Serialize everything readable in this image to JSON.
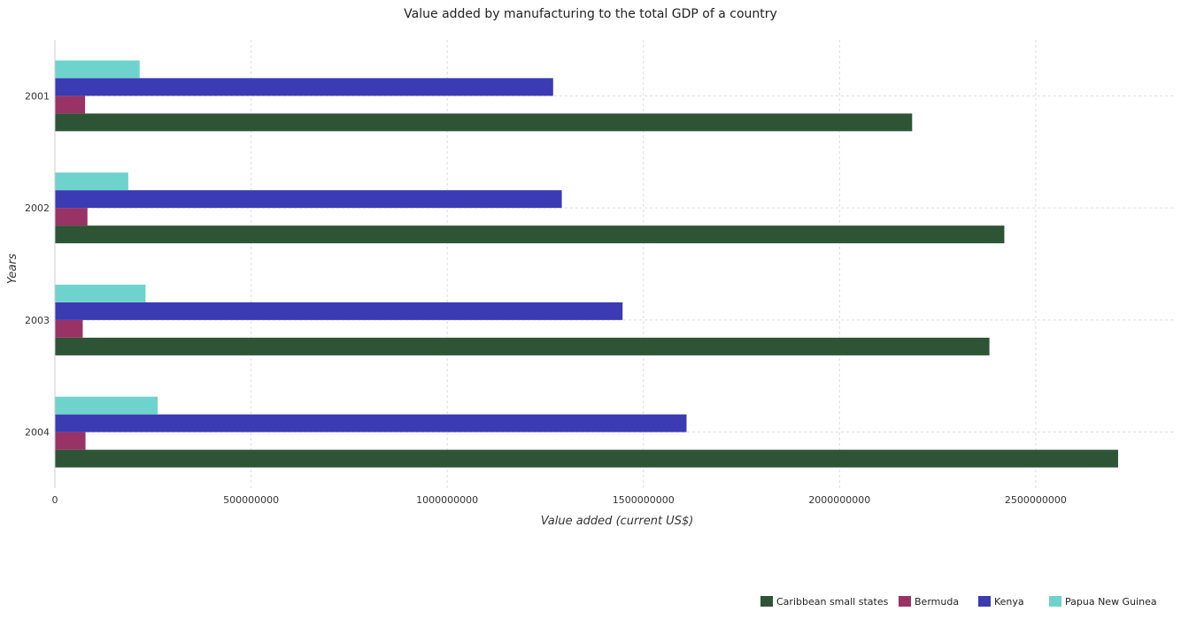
{
  "title": "Value added by manufacturing to the total GDP of a country",
  "chart_data": {
    "type": "bar",
    "orientation": "horizontal",
    "title": "Value added by manufacturing to the total GDP of a country",
    "xlabel": "Value added (current US$)",
    "ylabel": "Years",
    "categories": [
      "2001",
      "2002",
      "2003",
      "2004"
    ],
    "xlim": [
      0,
      2850000000
    ],
    "xticks": [
      0,
      500000000,
      1000000000,
      1500000000,
      2000000000,
      2500000000
    ],
    "xtick_labels": [
      "0",
      "500000000",
      "1000000000",
      "1500000000",
      "2000000000",
      "2500000000"
    ],
    "grid": true,
    "legend_position": "bottom-right",
    "series": [
      {
        "name": "Caribbean small states",
        "color": "#2e5436",
        "values": [
          2185000000,
          2420000000,
          2382000000,
          2710000000
        ]
      },
      {
        "name": "Bermuda",
        "color": "#993366",
        "values": [
          77000000,
          83000000,
          71000000,
          78000000
        ]
      },
      {
        "name": "Kenya",
        "color": "#3b3bb3",
        "values": [
          1270000000,
          1292000000,
          1447000000,
          1610000000
        ]
      },
      {
        "name": "Papua New Guinea",
        "color": "#6ed3cd",
        "values": [
          216000000,
          187000000,
          231000000,
          262000000
        ]
      }
    ]
  }
}
